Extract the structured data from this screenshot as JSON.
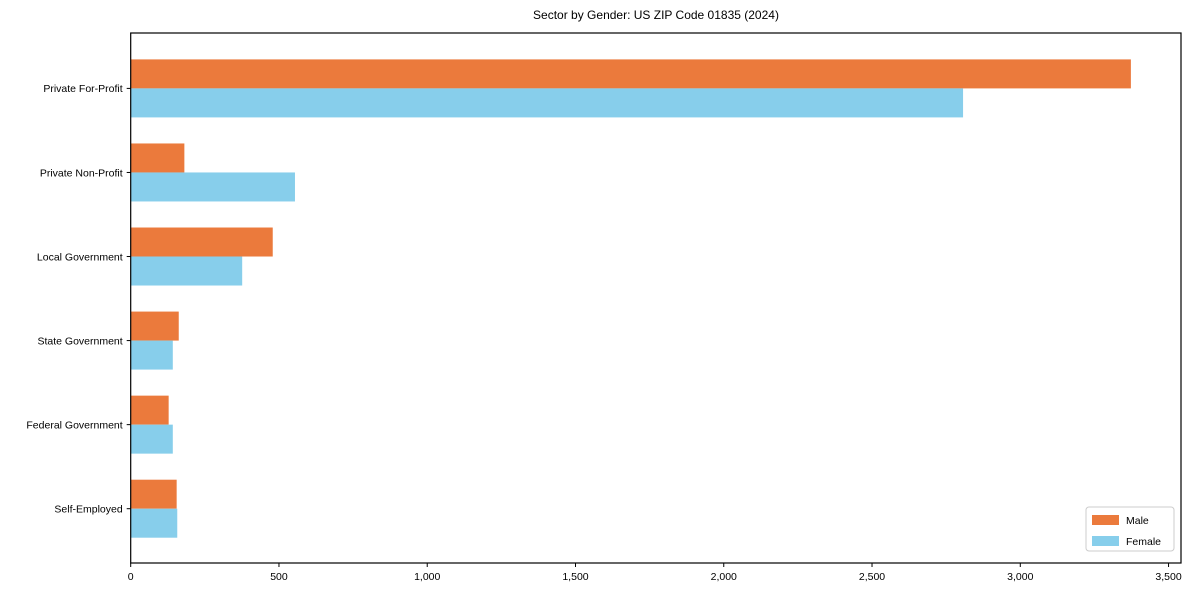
{
  "chart_data": {
    "type": "bar",
    "orientation": "horizontal",
    "title": "Sector by Gender: US ZIP Code 01835 (2024)",
    "categories": [
      "Private For-Profit",
      "Private Non-Profit",
      "Local Government",
      "State Government",
      "Federal Government",
      "Self-Employed"
    ],
    "series": [
      {
        "name": "Male",
        "color": "#EB7A3C",
        "values": [
          3373,
          181,
          479,
          162,
          128,
          155
        ]
      },
      {
        "name": "Female",
        "color": "#87CEEB",
        "values": [
          2807,
          554,
          376,
          142,
          142,
          157
        ]
      }
    ],
    "xlabel": "",
    "ylabel": "",
    "xlim": [
      0,
      3542
    ],
    "xticks": [
      0,
      500,
      1000,
      1500,
      2000,
      2500,
      3000,
      3500
    ],
    "xtick_labels": [
      "0",
      "500",
      "1,000",
      "1,500",
      "2,000",
      "2,500",
      "3,000",
      "3,500"
    ],
    "grid": false,
    "legend": {
      "position": "lower right",
      "entries": [
        {
          "label": "Male",
          "color": "#EB7A3C"
        },
        {
          "label": "Female",
          "color": "#87CEEB"
        }
      ],
      "border_color": "#cccccc",
      "background": "#ffffff"
    },
    "axis_color": "#000000",
    "background": "#ffffff"
  }
}
